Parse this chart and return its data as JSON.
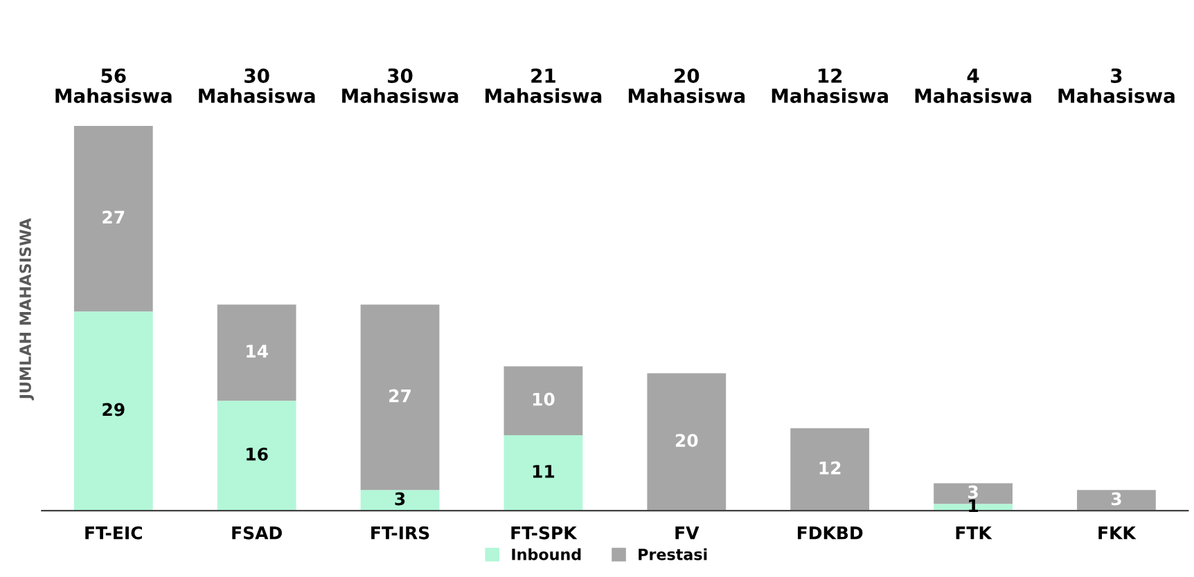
{
  "chart_data": {
    "type": "bar",
    "stacked": true,
    "ylabel": "JUMLAH MAHASISWA",
    "categories": [
      "FT-EIC",
      "FSAD",
      "FT-IRS",
      "FT-SPK",
      "FV",
      "FDKBD",
      "FTK",
      "FKK"
    ],
    "series": [
      {
        "name": "Inbound",
        "color": "#b3f7d8",
        "values": [
          29,
          16,
          3,
          11,
          0,
          0,
          1,
          0
        ],
        "value_labels": [
          "29",
          "16",
          "3",
          "11",
          null,
          null,
          "1",
          null
        ]
      },
      {
        "name": "Prestasi",
        "color": "#a6a6a6",
        "values": [
          27,
          14,
          27,
          10,
          20,
          12,
          3,
          3
        ],
        "value_labels": [
          "27",
          "14",
          "27",
          "10",
          "20",
          "12",
          "3",
          "3"
        ]
      }
    ],
    "annotations": [
      "56\nMahasiswa",
      "30\nMahasiswa",
      "30\nMahasiswa",
      "21\nMahasiswa",
      "20\nMahasiswa",
      "12\nMahasiswa",
      "4\nMahasiswa",
      "3\nMahasiswa"
    ],
    "legend": "bottom"
  }
}
